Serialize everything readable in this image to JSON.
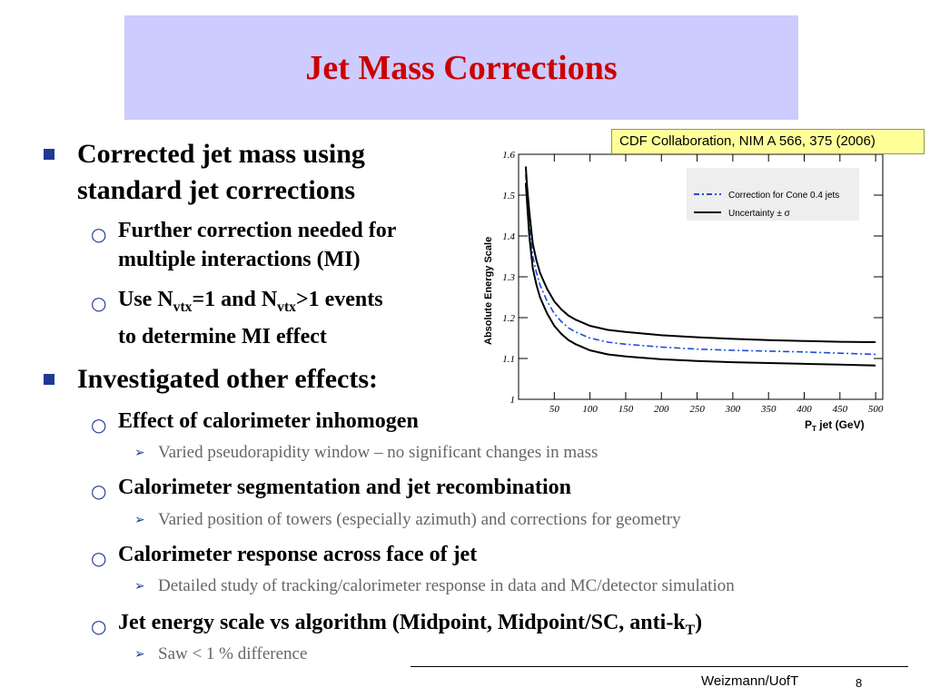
{
  "slide": {
    "title": "Jet Mass Corrections",
    "bullets": {
      "b1_line1": "Corrected jet mass using",
      "b1_line2": "standard jet corrections",
      "b1_sub1_line1": "Further correction needed for",
      "b1_sub1_line2": "multiple interactions (MI)",
      "b1_sub2_pre": "Use N",
      "b1_sub2_vtx1": "vtx",
      "b1_sub2_mid": "=1 and N",
      "b1_sub2_vtx2": "vtx",
      "b1_sub2_post": ">1 events",
      "b1_sub2_line2": "to determine MI effect",
      "b2": "Investigated other effects:",
      "b2_sub1": "Effect of calorimeter inhomogen",
      "b2_sub1_detail": "Varied pseudorapidity window – no significant changes in mass",
      "b2_sub2": "Calorimeter segmentation and jet recombination",
      "b2_sub2_detail": "Varied position of towers (especially azimuth) and corrections for geometry",
      "b2_sub3": "Calorimeter response across face of jet",
      "b2_sub3_detail": "Detailed study of tracking/calorimeter response in data and MC/detector simulation",
      "b2_sub4_pre": "Jet energy scale vs algorithm (Midpoint, Midpoint/SC, anti-k",
      "b2_sub4_sub": "T",
      "b2_sub4_post": ")",
      "b2_sub4_detail": "Saw < 1 % difference"
    },
    "citation": "CDF Collaboration, NIM A  566, 375 (2006)",
    "footer": "Weizmann/UofT",
    "page_number": "8"
  },
  "chart_data": {
    "type": "line",
    "ylabel": "Absolute Energy Scale",
    "xlabel_main": "P",
    "xlabel_sub": "T",
    "xlabel_rest": " jet (GeV)",
    "xlim": [
      0,
      510
    ],
    "ylim": [
      1.0,
      1.6
    ],
    "xticks": [
      50,
      100,
      150,
      200,
      250,
      300,
      350,
      400,
      450,
      500
    ],
    "yticks": [
      1,
      1.1,
      1.2,
      1.3,
      1.4,
      1.5,
      1.6
    ],
    "legend_position": "top-right",
    "series": [
      {
        "name": "Correction for Cone 0.4 jets",
        "style": "dash-dot",
        "color": "#1a4fd6",
        "x": [
          10,
          12,
          15,
          18,
          20,
          25,
          30,
          35,
          40,
          50,
          60,
          70,
          80,
          100,
          125,
          150,
          200,
          250,
          300,
          350,
          400,
          450,
          500
        ],
        "y": [
          1.55,
          1.5,
          1.43,
          1.38,
          1.35,
          1.31,
          1.28,
          1.26,
          1.24,
          1.21,
          1.19,
          1.175,
          1.165,
          1.15,
          1.14,
          1.135,
          1.128,
          1.123,
          1.12,
          1.118,
          1.116,
          1.113,
          1.11
        ]
      },
      {
        "name": "Uncertainty ± σ",
        "style": "solid",
        "color": "#000000",
        "x": [
          10,
          12,
          15,
          18,
          20,
          25,
          30,
          35,
          40,
          50,
          60,
          70,
          80,
          100,
          125,
          150,
          200,
          250,
          300,
          350,
          400,
          450,
          500
        ],
        "y": [
          1.57,
          1.52,
          1.46,
          1.41,
          1.38,
          1.34,
          1.31,
          1.29,
          1.27,
          1.24,
          1.22,
          1.205,
          1.195,
          1.18,
          1.17,
          1.165,
          1.157,
          1.152,
          1.148,
          1.145,
          1.143,
          1.141,
          1.14
        ]
      },
      {
        "name": "",
        "style": "solid",
        "color": "#000000",
        "x": [
          10,
          12,
          15,
          18,
          20,
          25,
          30,
          35,
          40,
          50,
          60,
          70,
          80,
          100,
          125,
          150,
          200,
          250,
          300,
          350,
          400,
          450,
          500
        ],
        "y": [
          1.53,
          1.48,
          1.4,
          1.35,
          1.32,
          1.28,
          1.25,
          1.23,
          1.21,
          1.18,
          1.16,
          1.145,
          1.135,
          1.12,
          1.11,
          1.105,
          1.098,
          1.094,
          1.091,
          1.089,
          1.087,
          1.085,
          1.083
        ]
      }
    ]
  }
}
